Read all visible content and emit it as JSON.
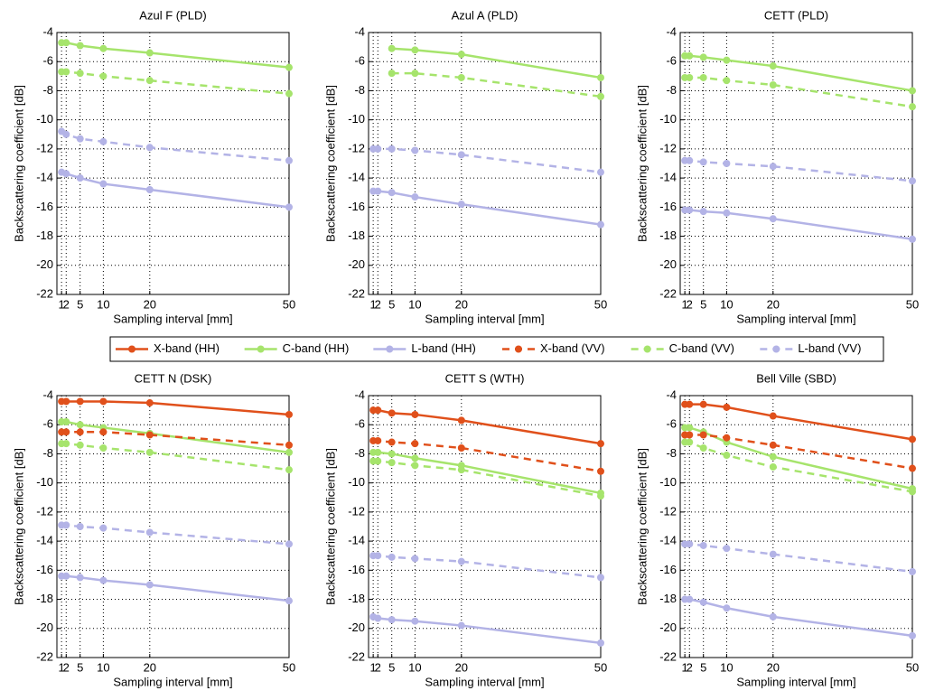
{
  "chart_data": [
    {
      "type": "line",
      "title": "Azul F (PLD)",
      "xlabel": "Sampling interval [mm]",
      "ylabel": "Backscattering coefficient [dB]",
      "x": [
        1,
        2,
        5,
        10,
        20,
        50
      ],
      "xlim": [
        0,
        50
      ],
      "xticks": [
        1,
        2,
        5,
        10,
        20,
        50
      ],
      "ylim": [
        -22,
        -4
      ],
      "yticks": [
        -22,
        -20,
        -18,
        -16,
        -14,
        -12,
        -10,
        -8,
        -6,
        -4
      ],
      "grid": true,
      "series": [
        {
          "name": "C-band (HH)",
          "color": "#a6e46c",
          "linestyle": "solid",
          "values": [
            -4.7,
            -4.7,
            -4.9,
            -5.1,
            -5.4,
            -6.4
          ]
        },
        {
          "name": "L-band (HH)",
          "color": "#b3b3e6",
          "linestyle": "solid",
          "values": [
            -13.6,
            -13.7,
            -14.0,
            -14.4,
            -14.8,
            -16.0
          ]
        },
        {
          "name": "C-band (VV)",
          "color": "#a6e46c",
          "linestyle": "dashed",
          "values": [
            -6.7,
            -6.7,
            -6.8,
            -7.0,
            -7.3,
            -8.2
          ]
        },
        {
          "name": "L-band (VV)",
          "color": "#b3b3e6",
          "linestyle": "dashed",
          "values": [
            -10.8,
            -11.0,
            -11.3,
            -11.5,
            -11.9,
            -12.8
          ]
        }
      ]
    },
    {
      "type": "line",
      "title": "Azul A (PLD)",
      "xlabel": "Sampling interval [mm]",
      "ylabel": "Backscattering coefficient [dB]",
      "x": [
        1,
        2,
        5,
        10,
        20,
        50
      ],
      "xlim": [
        0,
        50
      ],
      "xticks": [
        1,
        2,
        5,
        10,
        20,
        50
      ],
      "ylim": [
        -22,
        -4
      ],
      "yticks": [
        -22,
        -20,
        -18,
        -16,
        -14,
        -12,
        -10,
        -8,
        -6,
        -4
      ],
      "grid": true,
      "series": [
        {
          "name": "C-band (HH)",
          "color": "#a6e46c",
          "linestyle": "solid",
          "values": [
            null,
            null,
            -5.1,
            -5.2,
            -5.5,
            -7.1
          ]
        },
        {
          "name": "L-band (HH)",
          "color": "#b3b3e6",
          "linestyle": "solid",
          "values": [
            -14.9,
            -14.9,
            -15.0,
            -15.3,
            -15.8,
            -17.2
          ]
        },
        {
          "name": "C-band (VV)",
          "color": "#a6e46c",
          "linestyle": "dashed",
          "values": [
            null,
            null,
            -6.8,
            -6.8,
            -7.1,
            -8.4
          ]
        },
        {
          "name": "L-band (VV)",
          "color": "#b3b3e6",
          "linestyle": "dashed",
          "values": [
            -12.0,
            -12.0,
            -12.0,
            -12.1,
            -12.4,
            -13.6
          ]
        }
      ]
    },
    {
      "type": "line",
      "title": "CETT (PLD)",
      "xlabel": "Sampling interval [mm]",
      "ylabel": "Backscattering coefficient [dB]",
      "x": [
        1,
        2,
        5,
        10,
        20,
        50
      ],
      "xlim": [
        0,
        50
      ],
      "xticks": [
        1,
        2,
        5,
        10,
        20,
        50
      ],
      "ylim": [
        -22,
        -4
      ],
      "yticks": [
        -22,
        -20,
        -18,
        -16,
        -14,
        -12,
        -10,
        -8,
        -6,
        -4
      ],
      "grid": true,
      "series": [
        {
          "name": "C-band (HH)",
          "color": "#a6e46c",
          "linestyle": "solid",
          "values": [
            -5.6,
            -5.6,
            -5.7,
            -5.9,
            -6.3,
            -8.0
          ]
        },
        {
          "name": "L-band (HH)",
          "color": "#b3b3e6",
          "linestyle": "solid",
          "values": [
            -16.2,
            -16.2,
            -16.3,
            -16.4,
            -16.8,
            -18.2
          ]
        },
        {
          "name": "C-band (VV)",
          "color": "#a6e46c",
          "linestyle": "dashed",
          "values": [
            -7.1,
            -7.1,
            -7.1,
            -7.3,
            -7.6,
            -9.1
          ]
        },
        {
          "name": "L-band (VV)",
          "color": "#b3b3e6",
          "linestyle": "dashed",
          "values": [
            -12.8,
            -12.8,
            -12.9,
            -13.0,
            -13.2,
            -14.2
          ]
        }
      ]
    },
    {
      "type": "line",
      "title": "CETT N (DSK)",
      "xlabel": "Sampling interval [mm]",
      "ylabel": "Backscattering coefficient [dB]",
      "x": [
        1,
        2,
        5,
        10,
        20,
        50
      ],
      "xlim": [
        0,
        50
      ],
      "xticks": [
        1,
        2,
        5,
        10,
        20,
        50
      ],
      "ylim": [
        -22,
        -4
      ],
      "yticks": [
        -22,
        -20,
        -18,
        -16,
        -14,
        -12,
        -10,
        -8,
        -6,
        -4
      ],
      "grid": true,
      "series": [
        {
          "name": "X-band (HH)",
          "color": "#e0501b",
          "linestyle": "solid",
          "values": [
            -4.4,
            -4.4,
            -4.4,
            -4.4,
            -4.5,
            -5.3
          ]
        },
        {
          "name": "C-band (HH)",
          "color": "#a6e46c",
          "linestyle": "solid",
          "values": [
            -5.8,
            -5.8,
            -6.0,
            -6.2,
            -6.6,
            -7.9
          ]
        },
        {
          "name": "L-band (HH)",
          "color": "#b3b3e6",
          "linestyle": "solid",
          "values": [
            -16.4,
            -16.4,
            -16.5,
            -16.7,
            -17.0,
            -18.1
          ]
        },
        {
          "name": "X-band (VV)",
          "color": "#e0501b",
          "linestyle": "dashed",
          "values": [
            -6.5,
            -6.5,
            -6.5,
            -6.5,
            -6.7,
            -7.4
          ]
        },
        {
          "name": "C-band (VV)",
          "color": "#a6e46c",
          "linestyle": "dashed",
          "values": [
            -7.3,
            -7.3,
            -7.4,
            -7.6,
            -7.9,
            -9.1
          ]
        },
        {
          "name": "L-band (VV)",
          "color": "#b3b3e6",
          "linestyle": "dashed",
          "values": [
            -12.9,
            -12.9,
            -13.0,
            -13.1,
            -13.4,
            -14.2
          ]
        }
      ]
    },
    {
      "type": "line",
      "title": "CETT S (WTH)",
      "xlabel": "Sampling interval [mm]",
      "ylabel": "Backscattering coefficient [dB]",
      "x": [
        1,
        2,
        5,
        10,
        20,
        50
      ],
      "xlim": [
        0,
        50
      ],
      "xticks": [
        1,
        2,
        5,
        10,
        20,
        50
      ],
      "ylim": [
        -22,
        -4
      ],
      "yticks": [
        -22,
        -20,
        -18,
        -16,
        -14,
        -12,
        -10,
        -8,
        -6,
        -4
      ],
      "grid": true,
      "series": [
        {
          "name": "X-band (HH)",
          "color": "#e0501b",
          "linestyle": "solid",
          "values": [
            -5.0,
            -5.0,
            -5.2,
            -5.3,
            -5.7,
            -7.3
          ]
        },
        {
          "name": "C-band (HH)",
          "color": "#a6e46c",
          "linestyle": "solid",
          "values": [
            -7.9,
            -7.9,
            -8.0,
            -8.3,
            -8.8,
            -10.7
          ]
        },
        {
          "name": "L-band (HH)",
          "color": "#b3b3e6",
          "linestyle": "solid",
          "values": [
            -19.2,
            -19.3,
            -19.4,
            -19.5,
            -19.8,
            -21.0
          ]
        },
        {
          "name": "X-band (VV)",
          "color": "#e0501b",
          "linestyle": "dashed",
          "values": [
            -7.1,
            -7.1,
            -7.2,
            -7.3,
            -7.6,
            -9.2
          ]
        },
        {
          "name": "C-band (VV)",
          "color": "#a6e46c",
          "linestyle": "dashed",
          "values": [
            -8.5,
            -8.5,
            -8.6,
            -8.8,
            -9.1,
            -10.9
          ]
        },
        {
          "name": "L-band (VV)",
          "color": "#b3b3e6",
          "linestyle": "dashed",
          "values": [
            -15.0,
            -15.0,
            -15.1,
            -15.2,
            -15.4,
            -16.5
          ]
        }
      ]
    },
    {
      "type": "line",
      "title": "Bell Ville (SBD)",
      "xlabel": "Sampling interval [mm]",
      "ylabel": "Backscattering coefficient [dB]",
      "x": [
        1,
        2,
        5,
        10,
        20,
        50
      ],
      "xlim": [
        0,
        50
      ],
      "xticks": [
        1,
        2,
        5,
        10,
        20,
        50
      ],
      "ylim": [
        -22,
        -4
      ],
      "yticks": [
        -22,
        -20,
        -18,
        -16,
        -14,
        -12,
        -10,
        -8,
        -6,
        -4
      ],
      "grid": true,
      "series": [
        {
          "name": "X-band (HH)",
          "color": "#e0501b",
          "linestyle": "solid",
          "values": [
            -4.6,
            -4.6,
            -4.6,
            -4.8,
            -5.4,
            -7.0
          ]
        },
        {
          "name": "C-band (HH)",
          "color": "#a6e46c",
          "linestyle": "solid",
          "values": [
            -6.2,
            -6.2,
            -6.5,
            -7.2,
            -8.2,
            -10.4
          ]
        },
        {
          "name": "L-band (HH)",
          "color": "#b3b3e6",
          "linestyle": "solid",
          "values": [
            -18.0,
            -18.0,
            -18.2,
            -18.6,
            -19.2,
            -20.5
          ]
        },
        {
          "name": "X-band (VV)",
          "color": "#e0501b",
          "linestyle": "dashed",
          "values": [
            -6.7,
            -6.7,
            -6.7,
            -6.9,
            -7.4,
            -9.0
          ]
        },
        {
          "name": "C-band (VV)",
          "color": "#a6e46c",
          "linestyle": "dashed",
          "values": [
            -7.2,
            -7.2,
            -7.6,
            -8.1,
            -8.9,
            -10.6
          ]
        },
        {
          "name": "L-band (VV)",
          "color": "#b3b3e6",
          "linestyle": "dashed",
          "values": [
            -14.2,
            -14.2,
            -14.3,
            -14.5,
            -14.9,
            -16.1
          ]
        }
      ]
    }
  ]
}
